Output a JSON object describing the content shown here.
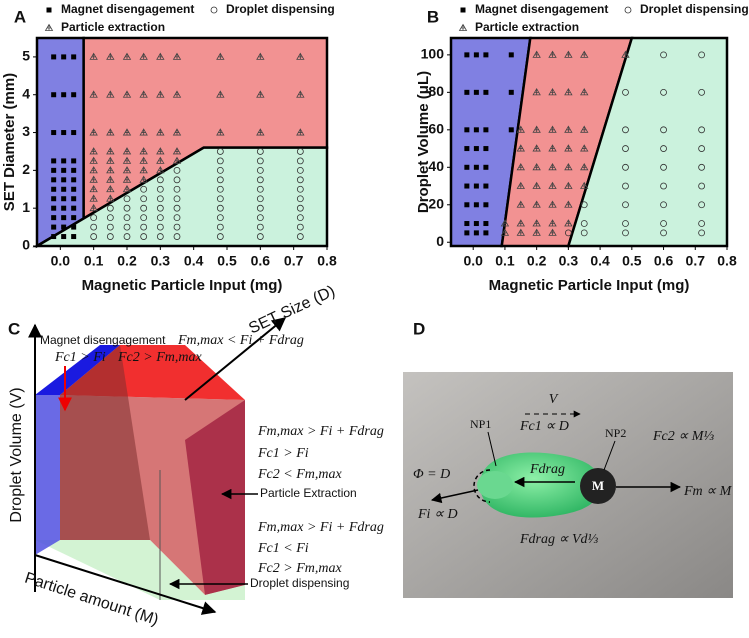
{
  "chart_data": [
    {
      "type": "scatter",
      "panel_label": "A",
      "xlabel": "Magnetic Particle Input (mg)",
      "ylabel": "SET Diameter (mm)",
      "xlim": [
        -0.07,
        0.8
      ],
      "ylim": [
        0,
        5.5
      ],
      "xticks": [
        {
          "value": 0,
          "label": "0.0"
        },
        0.1,
        0.2,
        0.3,
        0.4,
        0.5,
        0.6,
        0.7,
        0.8
      ],
      "yticks": [
        0,
        1,
        2,
        3,
        4,
        5
      ],
      "legend": "top",
      "regions": [
        {
          "color": "#8080e2",
          "x": [
            -0.07,
            -0.07,
            0.07,
            0.07
          ],
          "y": [
            0,
            5.5,
            5.5,
            0.73
          ]
        },
        {
          "color": "#f29292",
          "x": [
            0.07,
            0.07,
            0.8,
            0.8,
            0.43
          ],
          "y": [
            0.73,
            5.5,
            5.5,
            2.6,
            2.6
          ]
        },
        {
          "color": "#cbf2dd",
          "x": [
            -0.07,
            0.43,
            0.8,
            0.8
          ],
          "y": [
            0,
            2.6,
            2.6,
            0
          ]
        }
      ],
      "series": [
        {
          "name": "Magnet disengagement",
          "marker": "square",
          "color": "#000000",
          "x": [
            -0.02,
            -0.02,
            -0.02,
            -0.02,
            -0.02,
            -0.02,
            -0.02,
            -0.02,
            -0.02,
            -0.02,
            -0.02,
            -0.02,
            0.01,
            0.01,
            0.01,
            0.01,
            0.01,
            0.01,
            0.01,
            0.01,
            0.01,
            0.01,
            0.01,
            0.01,
            0.04,
            0.04,
            0.04,
            0.04,
            0.04,
            0.04,
            0.04,
            0.04,
            0.04,
            0.04,
            0.04,
            0.04
          ],
          "values": [
            0.25,
            0.5,
            0.75,
            1,
            1.25,
            1.5,
            1.75,
            2,
            2.25,
            3,
            4,
            5,
            0.25,
            0.5,
            0.75,
            1,
            1.25,
            1.5,
            1.75,
            2,
            2.25,
            3,
            4,
            5,
            0.25,
            0.5,
            0.75,
            1,
            1.25,
            1.5,
            1.75,
            2,
            2.25,
            3,
            4,
            5
          ]
        },
        {
          "name": "Droplet dispensing",
          "marker": "circle",
          "color": "#333333",
          "x": [
            0.1,
            0.1,
            0.1,
            0.15,
            0.15,
            0.15,
            0.15,
            0.2,
            0.2,
            0.2,
            0.2,
            0.2,
            0.25,
            0.25,
            0.25,
            0.25,
            0.25,
            0.25,
            0.3,
            0.3,
            0.3,
            0.3,
            0.3,
            0.3,
            0.3,
            0.35,
            0.35,
            0.35,
            0.35,
            0.35,
            0.35,
            0.35,
            0.35,
            0.48,
            0.48,
            0.48,
            0.48,
            0.48,
            0.48,
            0.48,
            0.48,
            0.48,
            0.48,
            0.6,
            0.6,
            0.6,
            0.6,
            0.6,
            0.6,
            0.6,
            0.6,
            0.6,
            0.6,
            0.72,
            0.72,
            0.72,
            0.72,
            0.72,
            0.72,
            0.72,
            0.72,
            0.72,
            0.72
          ],
          "values": [
            0.25,
            0.5,
            0.75,
            0.25,
            0.5,
            0.75,
            1,
            0.25,
            0.5,
            0.75,
            1,
            1.25,
            0.25,
            0.5,
            0.75,
            1,
            1.25,
            1.5,
            0.25,
            0.5,
            0.75,
            1,
            1.25,
            1.5,
            1.75,
            0.25,
            0.5,
            0.75,
            1,
            1.25,
            1.5,
            1.75,
            2,
            0.25,
            0.5,
            0.75,
            1,
            1.25,
            1.5,
            1.75,
            2,
            2.25,
            2.5,
            0.25,
            0.5,
            0.75,
            1,
            1.25,
            1.5,
            1.75,
            2,
            2.25,
            2.5,
            0.25,
            0.5,
            0.75,
            1,
            1.25,
            1.5,
            1.75,
            2,
            2.25,
            2.5
          ]
        },
        {
          "name": "Particle extraction",
          "marker": "triangle",
          "color": "#444444",
          "x": [
            0.1,
            0.1,
            0.1,
            0.1,
            0.1,
            0.1,
            0.1,
            0.1,
            0.1,
            0.1,
            0.15,
            0.15,
            0.15,
            0.15,
            0.15,
            0.15,
            0.15,
            0.15,
            0.15,
            0.2,
            0.2,
            0.2,
            0.2,
            0.2,
            0.2,
            0.2,
            0.2,
            0.25,
            0.25,
            0.25,
            0.25,
            0.25,
            0.25,
            0.25,
            0.3,
            0.3,
            0.3,
            0.3,
            0.3,
            0.3,
            0.35,
            0.35,
            0.35,
            0.35,
            0.35,
            0.48,
            0.48,
            0.48,
            0.6,
            0.6,
            0.6,
            0.72,
            0.72,
            0.72
          ],
          "values": [
            1,
            1.25,
            1.5,
            1.75,
            2,
            2.25,
            2.5,
            3,
            4,
            5,
            1.25,
            1.5,
            1.75,
            2,
            2.25,
            2.5,
            3,
            4,
            5,
            1.5,
            1.75,
            2,
            2.25,
            2.5,
            3,
            4,
            5,
            1.75,
            2,
            2.25,
            2.5,
            3,
            4,
            5,
            2,
            2.25,
            2.5,
            3,
            4,
            5,
            2.25,
            2.5,
            3,
            4,
            5,
            3,
            4,
            5,
            3,
            4,
            5,
            3,
            4,
            5
          ]
        }
      ]
    },
    {
      "type": "scatter",
      "panel_label": "B",
      "xlabel": "Magnetic Particle Input (mg)",
      "ylabel": "Droplet Volume  (μL)",
      "xlim": [
        -0.07,
        0.8
      ],
      "ylim": [
        -2,
        109
      ],
      "xticks": [
        {
          "value": 0,
          "label": "0.0"
        },
        0.1,
        0.2,
        0.3,
        0.4,
        0.5,
        0.6,
        0.7,
        0.8
      ],
      "yticks": [
        0,
        20,
        40,
        60,
        80,
        100
      ],
      "legend": "top",
      "regions": [
        {
          "color": "#8080e2",
          "x": [
            -0.07,
            -0.07,
            0.18,
            0.09
          ],
          "y": [
            -2,
            109,
            109,
            -2
          ]
        },
        {
          "color": "#f29292",
          "x": [
            0.09,
            0.18,
            0.5,
            0.3
          ],
          "y": [
            -2,
            109,
            109,
            -2
          ]
        },
        {
          "color": "#cbf2dd",
          "x": [
            0.3,
            0.5,
            0.8,
            0.8
          ],
          "y": [
            -2,
            109,
            109,
            -2
          ]
        }
      ],
      "series": [
        {
          "name": "Magnet disengagement",
          "marker": "square",
          "color": "#000000",
          "x": [
            -0.02,
            -0.02,
            -0.02,
            -0.02,
            -0.02,
            -0.02,
            -0.02,
            -0.02,
            -0.02,
            0.01,
            0.01,
            0.01,
            0.01,
            0.01,
            0.01,
            0.01,
            0.01,
            0.01,
            0.04,
            0.04,
            0.04,
            0.04,
            0.04,
            0.04,
            0.04,
            0.04,
            0.04,
            0.12,
            0.12,
            0.12
          ],
          "values": [
            5,
            10,
            20,
            30,
            40,
            50,
            60,
            80,
            100,
            5,
            10,
            20,
            30,
            40,
            50,
            60,
            80,
            100,
            5,
            10,
            20,
            30,
            40,
            50,
            60,
            80,
            100,
            60,
            80,
            100
          ]
        },
        {
          "name": "Droplet dispensing",
          "marker": "circle",
          "color": "#333333",
          "x": [
            0.3,
            0.35,
            0.35,
            0.35,
            0.48,
            0.48,
            0.48,
            0.48,
            0.48,
            0.48,
            0.48,
            0.48,
            0.6,
            0.6,
            0.6,
            0.6,
            0.6,
            0.6,
            0.6,
            0.6,
            0.6,
            0.72,
            0.72,
            0.72,
            0.72,
            0.72,
            0.72,
            0.72,
            0.72,
            0.72
          ],
          "values": [
            5,
            5,
            10,
            20,
            5,
            10,
            20,
            30,
            40,
            50,
            60,
            80,
            5,
            10,
            20,
            30,
            40,
            50,
            60,
            80,
            100,
            5,
            10,
            20,
            30,
            40,
            50,
            60,
            80,
            100
          ]
        },
        {
          "name": "Particle extraction",
          "marker": "triangle",
          "color": "#444444",
          "x": [
            0.1,
            0.1,
            0.15,
            0.15,
            0.15,
            0.15,
            0.15,
            0.15,
            0.15,
            0.2,
            0.2,
            0.2,
            0.2,
            0.2,
            0.2,
            0.2,
            0.2,
            0.2,
            0.25,
            0.25,
            0.25,
            0.25,
            0.25,
            0.25,
            0.25,
            0.25,
            0.25,
            0.3,
            0.3,
            0.3,
            0.3,
            0.3,
            0.3,
            0.3,
            0.3,
            0.35,
            0.35,
            0.35,
            0.35,
            0.35,
            0.35,
            0.48
          ],
          "values": [
            5,
            10,
            5,
            10,
            20,
            30,
            40,
            50,
            60,
            5,
            10,
            20,
            30,
            40,
            50,
            60,
            80,
            100,
            5,
            10,
            20,
            30,
            40,
            50,
            60,
            80,
            100,
            10,
            20,
            30,
            40,
            50,
            60,
            80,
            100,
            30,
            40,
            50,
            60,
            80,
            100,
            100
          ]
        }
      ]
    }
  ],
  "panel_c": {
    "label": "C",
    "magnet_title": "Magnet disengagement",
    "magnet_cond": "Fm,max < Fi + Fdrag",
    "magnet_c1": "Fc1 > Fi",
    "magnet_c2": "Fc2 > Fm,max",
    "axis_set": "SET Size (D)",
    "axis_volume": "Droplet Volume (V)",
    "axis_particle": "Particle amount (M)",
    "extraction": [
      "Fm,max > Fi + Fdrag",
      "Fc1 > Fi",
      "Fc2 < Fm,max"
    ],
    "extraction_label": "Particle Extraction",
    "dispensing": [
      "Fm,max > Fi + Fdrag",
      "Fc1 < Fi",
      "Fc2 > Fm,max"
    ],
    "dispensing_label": "Droplet dispensing"
  },
  "panel_d": {
    "label": "D",
    "velocity": "V",
    "np1": "NP1",
    "fc1": "Fc1 ∝ D",
    "np2": "NP2",
    "fc2": "Fc2 ∝ M⅓",
    "phi": "Φ = D",
    "fdrag": "Fdrag",
    "magnet": "M",
    "fm": "Fm ∝ M",
    "fi": "Fi ∝ D",
    "fdrag_rel": "Fdrag ∝ Vd⅓"
  }
}
